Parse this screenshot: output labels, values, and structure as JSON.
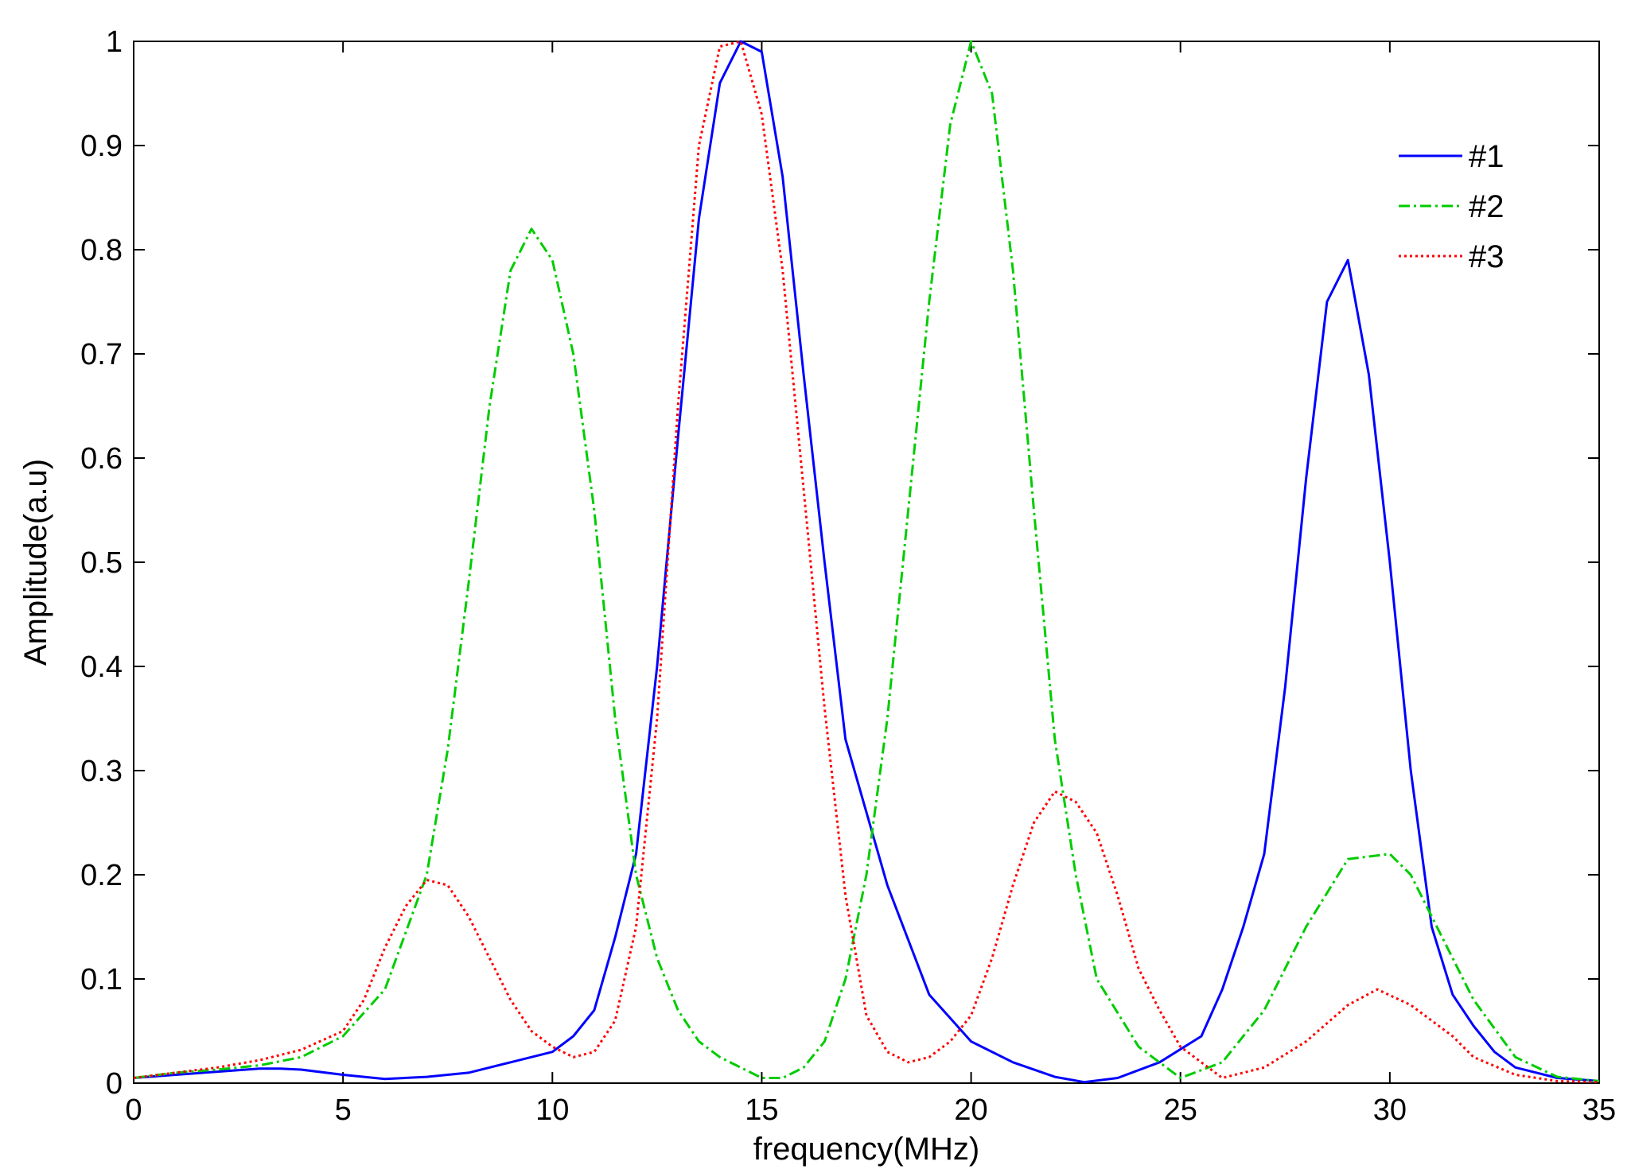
{
  "chart_data": {
    "type": "line",
    "xlabel": "frequency(MHz)",
    "ylabel": "Amplitude(a.u)",
    "xlim": [
      0,
      35
    ],
    "ylim": [
      0,
      1
    ],
    "xticks": [
      0,
      5,
      10,
      15,
      20,
      25,
      30,
      35
    ],
    "yticks": [
      0,
      0.1,
      0.2,
      0.3,
      0.4,
      0.5,
      0.6,
      0.7,
      0.8,
      0.9,
      1
    ],
    "xtick_labels": [
      "0",
      "5",
      "10",
      "15",
      "20",
      "25",
      "30",
      "35"
    ],
    "ytick_labels": [
      "0",
      "0.1",
      "0.2",
      "0.3",
      "0.4",
      "0.5",
      "0.6",
      "0.7",
      "0.8",
      "0.9",
      "1"
    ],
    "grid": false,
    "legend_position": "top-right",
    "series": [
      {
        "name": "#1",
        "color": "#0000ff",
        "style": "solid",
        "x": [
          0,
          1,
          2,
          3,
          3.5,
          4,
          5,
          6,
          7,
          8,
          9,
          10,
          10.5,
          11,
          11.5,
          12,
          12.5,
          13,
          13.5,
          14,
          14.5,
          15,
          15.5,
          16,
          16.5,
          17,
          18,
          19,
          20,
          21,
          22,
          22.7,
          23.5,
          24.5,
          25.5,
          26,
          26.5,
          27,
          27.5,
          28,
          28.5,
          29,
          29.5,
          30,
          30.5,
          31,
          31.5,
          32,
          32.5,
          33,
          34,
          35
        ],
        "y": [
          0.005,
          0.008,
          0.011,
          0.014,
          0.014,
          0.013,
          0.008,
          0.004,
          0.006,
          0.01,
          0.02,
          0.03,
          0.045,
          0.07,
          0.14,
          0.22,
          0.4,
          0.62,
          0.83,
          0.96,
          1.0,
          0.99,
          0.87,
          0.68,
          0.5,
          0.33,
          0.19,
          0.085,
          0.04,
          0.02,
          0.006,
          0.001,
          0.005,
          0.02,
          0.045,
          0.09,
          0.15,
          0.22,
          0.38,
          0.58,
          0.75,
          0.79,
          0.68,
          0.5,
          0.3,
          0.15,
          0.085,
          0.055,
          0.03,
          0.015,
          0.005,
          0.002
        ]
      },
      {
        "name": "#2",
        "color": "#00cc00",
        "style": "dashdot",
        "x": [
          0,
          1,
          2,
          3,
          4,
          5,
          6,
          7,
          7.5,
          8,
          8.5,
          9,
          9.5,
          10,
          10.5,
          11,
          11.5,
          12,
          12.5,
          13,
          13.5,
          14,
          15,
          15.5,
          16,
          16.5,
          17,
          17.5,
          18,
          18.5,
          19,
          19.5,
          20,
          20.5,
          21,
          21.5,
          22,
          22.5,
          23,
          24,
          25,
          26,
          27,
          28,
          29,
          30,
          30.5,
          31,
          32,
          33,
          34,
          35
        ],
        "y": [
          0.005,
          0.01,
          0.013,
          0.017,
          0.025,
          0.045,
          0.09,
          0.2,
          0.32,
          0.48,
          0.65,
          0.78,
          0.82,
          0.79,
          0.7,
          0.55,
          0.35,
          0.2,
          0.12,
          0.07,
          0.04,
          0.025,
          0.005,
          0.005,
          0.015,
          0.04,
          0.1,
          0.2,
          0.35,
          0.55,
          0.75,
          0.92,
          1.0,
          0.95,
          0.78,
          0.55,
          0.33,
          0.2,
          0.1,
          0.035,
          0.005,
          0.02,
          0.07,
          0.15,
          0.215,
          0.22,
          0.2,
          0.16,
          0.08,
          0.025,
          0.006,
          0.002
        ]
      },
      {
        "name": "#3",
        "color": "#ff0000",
        "style": "dotted",
        "x": [
          0,
          1,
          2,
          3,
          4,
          5,
          5.5,
          6,
          6.5,
          7,
          7.5,
          8,
          8.5,
          9,
          9.5,
          10,
          10.5,
          11,
          11.5,
          12,
          12.5,
          13,
          13.5,
          14,
          14.5,
          15,
          15.5,
          16,
          16.5,
          17,
          17.5,
          18,
          18.5,
          19,
          19.5,
          20,
          20.5,
          21,
          21.5,
          22,
          22.5,
          23,
          23.5,
          24,
          24.5,
          25,
          26,
          27,
          28,
          29,
          29.7,
          30.5,
          31,
          31.5,
          32,
          33,
          34,
          35
        ],
        "y": [
          0.005,
          0.01,
          0.015,
          0.022,
          0.032,
          0.05,
          0.08,
          0.13,
          0.17,
          0.195,
          0.19,
          0.16,
          0.12,
          0.08,
          0.05,
          0.035,
          0.025,
          0.03,
          0.06,
          0.15,
          0.35,
          0.65,
          0.9,
          0.995,
          1.0,
          0.93,
          0.78,
          0.57,
          0.36,
          0.18,
          0.065,
          0.03,
          0.02,
          0.025,
          0.04,
          0.065,
          0.12,
          0.19,
          0.25,
          0.28,
          0.27,
          0.24,
          0.18,
          0.11,
          0.07,
          0.035,
          0.005,
          0.015,
          0.04,
          0.075,
          0.09,
          0.075,
          0.06,
          0.045,
          0.025,
          0.008,
          0.002,
          0.001
        ]
      }
    ]
  }
}
